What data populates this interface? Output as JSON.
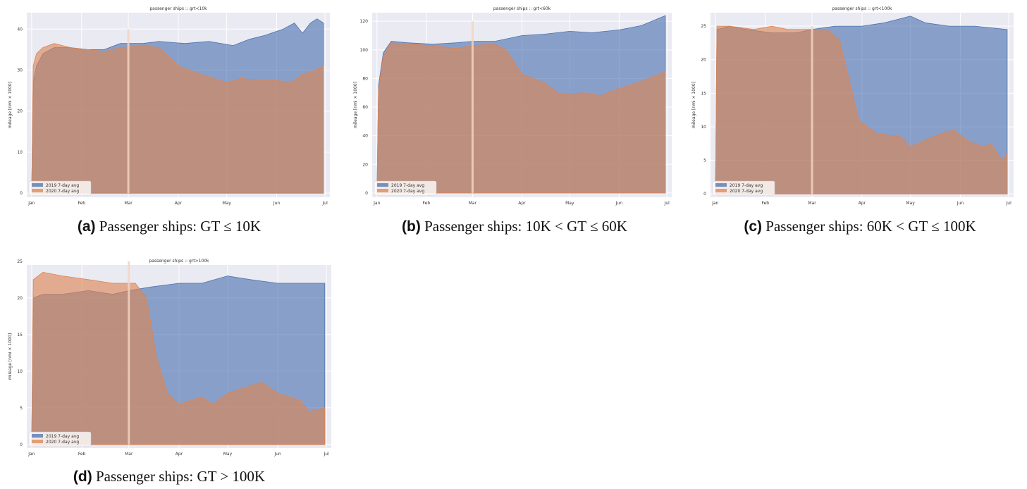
{
  "x_tick_labels": [
    "Jan",
    "Feb",
    "Mar",
    "Apr",
    "May",
    "Jun",
    "Jul"
  ],
  "colors": {
    "series_2019": "#4c72b0",
    "series_2020": "#dd8452",
    "plot_bg": "#eaeaf2",
    "grid": "#ffffff"
  },
  "chart_data": [
    {
      "type": "area",
      "title": "passenger ships :: grt<10k",
      "caption_letter": "(a)",
      "caption_text": "Passenger ships:  GT ≤ 10K",
      "ylabel": "mileage [nmi × 1000]",
      "xlabel": "",
      "ylim": [
        -1,
        44
      ],
      "yticks": [
        0,
        10,
        20,
        30,
        40
      ],
      "grid": true,
      "legend_placement": "bottom-left",
      "marker_date": "2020-03-01",
      "series": [
        {
          "name": "2019 7-day avg",
          "points": [
            [
              "2020-01-01",
              0
            ],
            [
              "2020-01-02",
              27
            ],
            [
              "2020-01-04",
              31
            ],
            [
              "2020-01-08",
              34
            ],
            [
              "2020-01-15",
              35.5
            ],
            [
              "2020-01-25",
              35.5
            ],
            [
              "2020-02-05",
              35
            ],
            [
              "2020-02-15",
              35
            ],
            [
              "2020-02-25",
              36.5
            ],
            [
              "2020-03-10",
              36.5
            ],
            [
              "2020-03-20",
              37
            ],
            [
              "2020-04-05",
              36.5
            ],
            [
              "2020-04-20",
              37
            ],
            [
              "2020-05-05",
              36
            ],
            [
              "2020-05-15",
              37.5
            ],
            [
              "2020-05-25",
              38.5
            ],
            [
              "2020-06-05",
              40
            ],
            [
              "2020-06-12",
              41.5
            ],
            [
              "2020-06-17",
              39
            ],
            [
              "2020-06-22",
              41.5
            ],
            [
              "2020-06-26",
              42.5
            ],
            [
              "2020-06-30",
              41.5
            ],
            [
              "2020-06-30",
              0
            ]
          ]
        },
        {
          "name": "2020 7-day avg",
          "points": [
            [
              "2020-01-01",
              0
            ],
            [
              "2020-01-02",
              31
            ],
            [
              "2020-01-04",
              34
            ],
            [
              "2020-01-08",
              35.5
            ],
            [
              "2020-01-15",
              36.5
            ],
            [
              "2020-01-25",
              35.5
            ],
            [
              "2020-02-05",
              35
            ],
            [
              "2020-02-15",
              34.5
            ],
            [
              "2020-02-25",
              35.5
            ],
            [
              "2020-03-10",
              36
            ],
            [
              "2020-03-20",
              35.5
            ],
            [
              "2020-04-01",
              31
            ],
            [
              "2020-04-15",
              29
            ],
            [
              "2020-05-01",
              27
            ],
            [
              "2020-05-10",
              28
            ],
            [
              "2020-05-20",
              27.5
            ],
            [
              "2020-06-01",
              27.5
            ],
            [
              "2020-06-10",
              27
            ],
            [
              "2020-06-17",
              29
            ],
            [
              "2020-06-25",
              30
            ],
            [
              "2020-06-30",
              31
            ],
            [
              "2020-06-30",
              0
            ]
          ]
        }
      ]
    },
    {
      "type": "area",
      "title": "passenger ships :: grt<60k",
      "caption_letter": "(b)",
      "caption_text": "Passenger ships:  10K < GT ≤ 60K",
      "ylabel": "mileage [nmi × 1000]",
      "xlabel": "",
      "ylim": [
        -3,
        126
      ],
      "yticks": [
        0,
        20,
        40,
        60,
        80,
        100,
        120
      ],
      "grid": true,
      "legend_placement": "bottom-left",
      "marker_date": "2020-03-01",
      "series": [
        {
          "name": "2019 7-day avg",
          "points": [
            [
              "2020-01-01",
              0
            ],
            [
              "2020-01-02",
              75
            ],
            [
              "2020-01-05",
              98
            ],
            [
              "2020-01-10",
              106
            ],
            [
              "2020-01-20",
              105
            ],
            [
              "2020-02-05",
              104
            ],
            [
              "2020-02-20",
              105
            ],
            [
              "2020-03-01",
              106
            ],
            [
              "2020-03-15",
              106
            ],
            [
              "2020-04-01",
              110
            ],
            [
              "2020-04-15",
              111
            ],
            [
              "2020-05-01",
              113
            ],
            [
              "2020-05-15",
              112
            ],
            [
              "2020-06-01",
              114
            ],
            [
              "2020-06-15",
              117
            ],
            [
              "2020-06-30",
              124
            ],
            [
              "2020-06-30",
              0
            ]
          ]
        },
        {
          "name": "2020 7-day avg",
          "points": [
            [
              "2020-01-01",
              0
            ],
            [
              "2020-01-02",
              72
            ],
            [
              "2020-01-05",
              96
            ],
            [
              "2020-01-10",
              105
            ],
            [
              "2020-01-20",
              104
            ],
            [
              "2020-02-05",
              103
            ],
            [
              "2020-02-20",
              101
            ],
            [
              "2020-03-01",
              103
            ],
            [
              "2020-03-15",
              104
            ],
            [
              "2020-03-22",
              100
            ],
            [
              "2020-04-01",
              83
            ],
            [
              "2020-04-15",
              77
            ],
            [
              "2020-04-25",
              69
            ],
            [
              "2020-05-10",
              70
            ],
            [
              "2020-05-20",
              68
            ],
            [
              "2020-06-01",
              73
            ],
            [
              "2020-06-15",
              78
            ],
            [
              "2020-06-30",
              85
            ],
            [
              "2020-06-30",
              0
            ]
          ]
        }
      ]
    },
    {
      "type": "area",
      "title": "passenger ships :: grt<100k",
      "caption_letter": "(c)",
      "caption_text": "Passenger ships:  60K < GT ≤ 100K",
      "ylabel": "mileage [nmi × 1000]",
      "xlabel": "",
      "ylim": [
        -0.5,
        27
      ],
      "yticks": [
        0,
        5,
        10,
        15,
        20,
        25
      ],
      "grid": true,
      "legend_placement": "bottom-left",
      "marker_date": "2020-03-01",
      "series": [
        {
          "name": "2019 7-day avg",
          "points": [
            [
              "2020-01-01",
              0
            ],
            [
              "2020-01-02",
              24.5
            ],
            [
              "2020-01-10",
              25
            ],
            [
              "2020-01-20",
              24.5
            ],
            [
              "2020-02-05",
              24
            ],
            [
              "2020-02-20",
              24
            ],
            [
              "2020-03-01",
              24.5
            ],
            [
              "2020-03-15",
              25
            ],
            [
              "2020-04-01",
              25
            ],
            [
              "2020-04-15",
              25.5
            ],
            [
              "2020-05-01",
              26.5
            ],
            [
              "2020-05-10",
              25.5
            ],
            [
              "2020-05-25",
              25
            ],
            [
              "2020-06-10",
              25
            ],
            [
              "2020-06-30",
              24.5
            ],
            [
              "2020-06-30",
              0
            ]
          ]
        },
        {
          "name": "2020 7-day avg",
          "points": [
            [
              "2020-01-01",
              0
            ],
            [
              "2020-01-02",
              25
            ],
            [
              "2020-01-10",
              25
            ],
            [
              "2020-01-25",
              24.5
            ],
            [
              "2020-02-05",
              25
            ],
            [
              "2020-02-15",
              24.5
            ],
            [
              "2020-02-25",
              24.5
            ],
            [
              "2020-03-10",
              24.5
            ],
            [
              "2020-03-18",
              23
            ],
            [
              "2020-03-24",
              17
            ],
            [
              "2020-03-30",
              11
            ],
            [
              "2020-04-10",
              9
            ],
            [
              "2020-04-25",
              8.5
            ],
            [
              "2020-05-01",
              7
            ],
            [
              "2020-05-10",
              8
            ],
            [
              "2020-05-20",
              9
            ],
            [
              "2020-05-28",
              9.5
            ],
            [
              "2020-06-05",
              8
            ],
            [
              "2020-06-15",
              7
            ],
            [
              "2020-06-20",
              7.5
            ],
            [
              "2020-06-27",
              5
            ],
            [
              "2020-06-30",
              6
            ],
            [
              "2020-06-30",
              0
            ]
          ]
        }
      ]
    },
    {
      "type": "area",
      "title": "passenger ships :: grt>100k",
      "caption_letter": "(d)",
      "caption_text": "Passenger ships:  GT > 100K",
      "ylabel": "mileage [nmi × 1000]",
      "xlabel": "",
      "ylim": [
        -0.5,
        24.5
      ],
      "yticks": [
        0,
        5,
        10,
        15,
        20,
        25
      ],
      "grid": true,
      "legend_placement": "bottom-left",
      "marker_date": "2020-03-01",
      "series": [
        {
          "name": "2019 7-day avg",
          "points": [
            [
              "2020-01-01",
              0
            ],
            [
              "2020-01-02",
              20
            ],
            [
              "2020-01-08",
              20.5
            ],
            [
              "2020-01-20",
              20.5
            ],
            [
              "2020-02-05",
              21
            ],
            [
              "2020-02-20",
              20.5
            ],
            [
              "2020-03-01",
              21
            ],
            [
              "2020-03-15",
              21.5
            ],
            [
              "2020-04-01",
              22
            ],
            [
              "2020-04-15",
              22
            ],
            [
              "2020-05-01",
              23
            ],
            [
              "2020-05-15",
              22.5
            ],
            [
              "2020-06-01",
              22
            ],
            [
              "2020-06-15",
              22
            ],
            [
              "2020-06-30",
              22
            ],
            [
              "2020-06-30",
              0
            ]
          ]
        },
        {
          "name": "2020 7-day avg",
          "points": [
            [
              "2020-01-01",
              0
            ],
            [
              "2020-01-02",
              22.5
            ],
            [
              "2020-01-08",
              23.5
            ],
            [
              "2020-01-20",
              23
            ],
            [
              "2020-02-05",
              22.5
            ],
            [
              "2020-02-20",
              22
            ],
            [
              "2020-03-05",
              22
            ],
            [
              "2020-03-12",
              20
            ],
            [
              "2020-03-18",
              12
            ],
            [
              "2020-03-25",
              7
            ],
            [
              "2020-04-01",
              5.5
            ],
            [
              "2020-04-15",
              6.5
            ],
            [
              "2020-04-22",
              5.5
            ],
            [
              "2020-05-01",
              7
            ],
            [
              "2020-05-15",
              8
            ],
            [
              "2020-05-22",
              8.5
            ],
            [
              "2020-06-01",
              7
            ],
            [
              "2020-06-15",
              6
            ],
            [
              "2020-06-20",
              4.5
            ],
            [
              "2020-06-30",
              5
            ],
            [
              "2020-06-30",
              0
            ]
          ]
        }
      ]
    }
  ]
}
